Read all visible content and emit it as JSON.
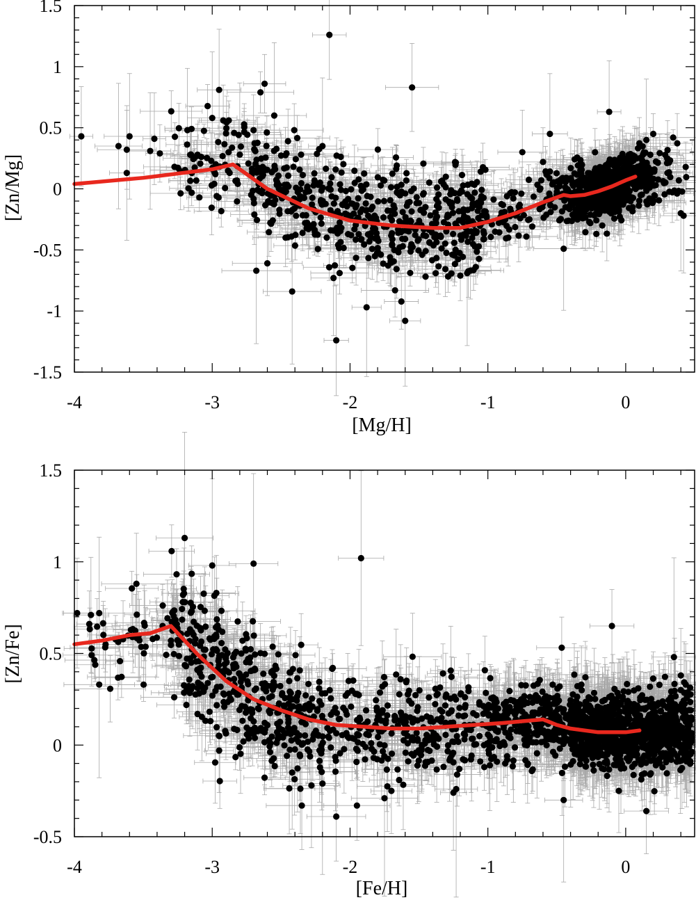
{
  "chart_data": [
    {
      "type": "scatter",
      "xlabel": "[Mg/H]",
      "ylabel": "[Zn/Mg]",
      "xlim": [
        -4,
        0.5
      ],
      "ylim": [
        -1.5,
        1.5
      ],
      "xticks": [
        -4,
        -3,
        -2,
        -1,
        0
      ],
      "yticks": [
        -1.5,
        -1,
        -0.5,
        0,
        0.5,
        1,
        1.5
      ],
      "xtick_labels": [
        "-4",
        "-3",
        "-2",
        "-1",
        "0"
      ],
      "ytick_labels": [
        "-1.5",
        "-1",
        "-0.5",
        "0",
        "0.5",
        "1",
        "1.5"
      ],
      "grid": false,
      "colors": {
        "points": "#000000",
        "errorbars": "#a8a8a8",
        "model": "#e8281e"
      },
      "model_line": {
        "x": [
          -4.0,
          -3.5,
          -3.0,
          -2.85,
          -2.6,
          -2.3,
          -2.0,
          -1.7,
          -1.4,
          -1.2,
          -1.0,
          -0.8,
          -0.6,
          -0.45,
          -0.4,
          -0.3,
          -0.2,
          -0.1,
          0.0,
          0.07
        ],
        "y": [
          0.04,
          0.09,
          0.16,
          0.2,
          0.0,
          -0.16,
          -0.26,
          -0.3,
          -0.32,
          -0.32,
          -0.27,
          -0.2,
          -0.11,
          -0.05,
          -0.06,
          -0.05,
          -0.02,
          0.02,
          0.07,
          0.1
        ]
      },
      "points": [
        {
          "x": -3.95,
          "y": 0.43
        },
        {
          "x": -3.68,
          "y": 0.35
        },
        {
          "x": -3.62,
          "y": 0.32
        },
        {
          "x": -3.62,
          "y": 0.13
        },
        {
          "x": -3.6,
          "y": 0.43
        },
        {
          "x": -3.45,
          "y": 0.31
        },
        {
          "x": -3.42,
          "y": 0.41
        },
        {
          "x": -3.38,
          "y": 0.29
        },
        {
          "x": -3.18,
          "y": 0.48
        },
        {
          "x": -3.15,
          "y": 0.49
        },
        {
          "x": -3.0,
          "y": 0.58
        },
        {
          "x": -2.95,
          "y": 0.81
        },
        {
          "x": -2.92,
          "y": 0.56
        },
        {
          "x": -2.88,
          "y": 0.56
        },
        {
          "x": -2.8,
          "y": 0.28
        },
        {
          "x": -2.7,
          "y": 0.48
        },
        {
          "x": -2.68,
          "y": -0.67
        },
        {
          "x": -2.65,
          "y": 0.79
        },
        {
          "x": -2.62,
          "y": 0.86
        },
        {
          "x": -2.6,
          "y": -0.61
        },
        {
          "x": -2.55,
          "y": 0.6
        },
        {
          "x": -2.45,
          "y": 0.39
        },
        {
          "x": -2.42,
          "y": -0.84
        },
        {
          "x": -2.2,
          "y": 0.35
        },
        {
          "x": -2.15,
          "y": 1.26
        },
        {
          "x": -2.12,
          "y": -0.73
        },
        {
          "x": -2.1,
          "y": -1.24
        },
        {
          "x": -1.88,
          "y": -0.97
        },
        {
          "x": -1.6,
          "y": -1.08
        },
        {
          "x": -1.55,
          "y": 0.83
        },
        {
          "x": -1.2,
          "y": -0.71
        },
        {
          "x": -1.15,
          "y": -0.69
        },
        {
          "x": -0.75,
          "y": 0.3
        },
        {
          "x": -0.6,
          "y": 0.22
        },
        {
          "x": -0.55,
          "y": 0.45
        },
        {
          "x": -0.45,
          "y": -0.49
        },
        {
          "x": -0.12,
          "y": 0.63
        },
        {
          "x": 0.05,
          "y": -0.15
        },
        {
          "x": 0.15,
          "y": 0.4
        },
        {
          "x": 0.2,
          "y": 0.45
        },
        {
          "x": 0.4,
          "y": -0.2
        },
        {
          "x": 0.42,
          "y": -0.22
        }
      ]
    },
    {
      "type": "scatter",
      "xlabel": "[Fe/H]",
      "ylabel": "[Zn/Fe]",
      "xlim": [
        -4,
        0.5
      ],
      "ylim": [
        -0.5,
        1.5
      ],
      "xticks": [
        -4,
        -3,
        -2,
        -1,
        0
      ],
      "yticks": [
        -0.5,
        0,
        0.5,
        1,
        1.5
      ],
      "xtick_labels": [
        "-4",
        "-3",
        "-2",
        "-1",
        "0"
      ],
      "ytick_labels": [
        "-0.5",
        "0",
        "0.5",
        "1",
        "1.5"
      ],
      "grid": false,
      "colors": {
        "points": "#000000",
        "errorbars": "#a8a8a8",
        "model": "#e8281e"
      },
      "model_line": {
        "x": [
          -4.0,
          -3.8,
          -3.6,
          -3.45,
          -3.3,
          -3.1,
          -2.9,
          -2.7,
          -2.5,
          -2.3,
          -2.1,
          -1.9,
          -1.7,
          -1.5,
          -1.3,
          -1.1,
          -0.9,
          -0.75,
          -0.6,
          -0.5,
          -0.4,
          -0.2,
          0.0,
          0.1
        ],
        "y": [
          0.55,
          0.57,
          0.6,
          0.61,
          0.65,
          0.49,
          0.35,
          0.25,
          0.19,
          0.14,
          0.11,
          0.1,
          0.09,
          0.09,
          0.1,
          0.11,
          0.12,
          0.13,
          0.14,
          0.11,
          0.09,
          0.07,
          0.07,
          0.08
        ]
      },
      "points": [
        {
          "x": -3.98,
          "y": 0.72
        },
        {
          "x": -3.88,
          "y": 0.71
        },
        {
          "x": -3.82,
          "y": 0.72
        },
        {
          "x": -3.82,
          "y": 0.33
        },
        {
          "x": -3.55,
          "y": 0.88
        },
        {
          "x": -3.2,
          "y": 1.13
        },
        {
          "x": -3.0,
          "y": 0.98
        },
        {
          "x": -2.97,
          "y": 0.83
        },
        {
          "x": -2.95,
          "y": -0.03
        },
        {
          "x": -2.7,
          "y": 0.99
        },
        {
          "x": -2.42,
          "y": -0.15
        },
        {
          "x": -2.35,
          "y": -0.33
        },
        {
          "x": -2.28,
          "y": -0.22
        },
        {
          "x": -2.2,
          "y": -0.21
        },
        {
          "x": -2.1,
          "y": -0.39
        },
        {
          "x": -1.95,
          "y": -0.33
        },
        {
          "x": -1.92,
          "y": 1.02
        },
        {
          "x": -1.75,
          "y": -0.29
        },
        {
          "x": -1.7,
          "y": -0.25
        },
        {
          "x": -1.25,
          "y": -0.26
        },
        {
          "x": -1.23,
          "y": -0.24
        },
        {
          "x": -0.45,
          "y": -0.3
        },
        {
          "x": -0.1,
          "y": 0.65
        },
        {
          "x": -0.05,
          "y": -0.25
        },
        {
          "x": 0.15,
          "y": -0.36
        },
        {
          "x": 0.35,
          "y": 0.48
        },
        {
          "x": 0.4,
          "y": 0.38
        }
      ]
    }
  ]
}
